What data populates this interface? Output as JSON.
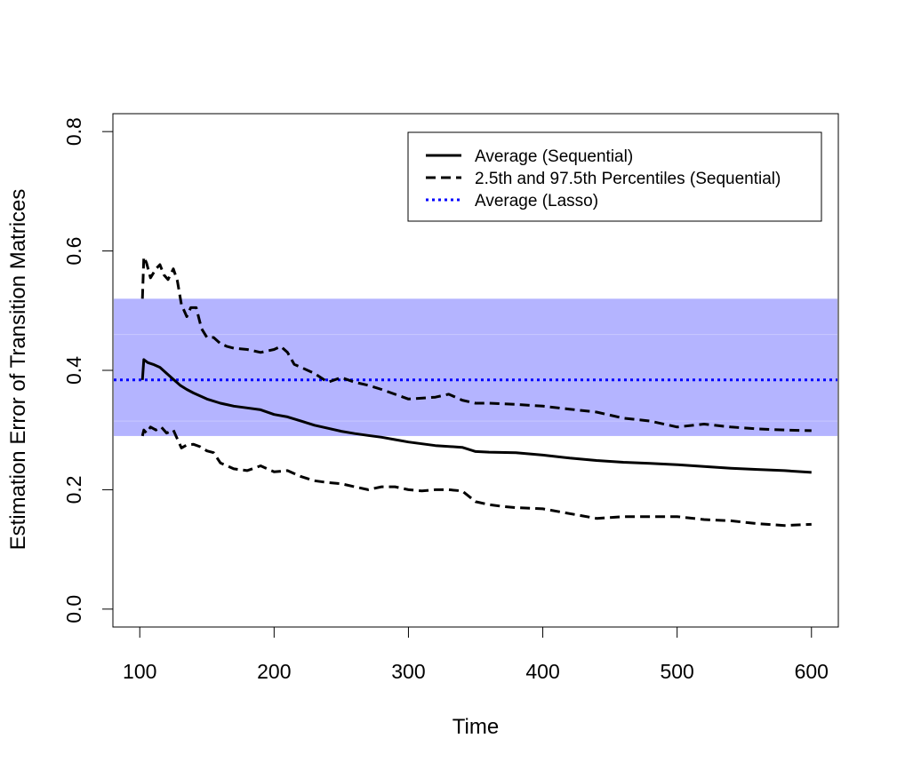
{
  "chart_data": {
    "type": "line",
    "title": "",
    "xlabel": "Time",
    "ylabel": "Estimation Error of Transition Matrices",
    "xlim": [
      80,
      620
    ],
    "ylim": [
      -0.03,
      0.83
    ],
    "x_ticks": [
      100,
      200,
      300,
      400,
      500,
      600
    ],
    "x_tick_labels": [
      "100",
      "200",
      "300",
      "400",
      "500",
      "600"
    ],
    "y_ticks": [
      0.0,
      0.2,
      0.4,
      0.6,
      0.8
    ],
    "y_tick_labels": [
      "0.0",
      "0.2",
      "0.4",
      "0.6",
      "0.8"
    ],
    "legend": {
      "position": "top-right",
      "entries": [
        {
          "label": "Average (Sequential)",
          "style": "solid",
          "color": "#000000"
        },
        {
          "label": "2.5th and 97.5th Percentiles (Sequential)",
          "style": "dashed",
          "color": "#000000"
        },
        {
          "label": "Average (Lasso)",
          "style": "dotted",
          "color": "#0000ff"
        }
      ]
    },
    "lasso_band": {
      "lower": 0.29,
      "upper": 0.52,
      "inner_lower": 0.315,
      "inner_upper": 0.46,
      "color": "#b4b4ff"
    },
    "lasso_average": 0.384,
    "series": [
      {
        "name": "Average (Sequential)",
        "style": "solid",
        "x": [
          102,
          103,
          106,
          110,
          115,
          120,
          125,
          130,
          135,
          140,
          150,
          160,
          170,
          180,
          190,
          200,
          210,
          220,
          230,
          240,
          250,
          260,
          270,
          280,
          290,
          300,
          320,
          340,
          350,
          360,
          380,
          400,
          420,
          440,
          460,
          480,
          500,
          520,
          540,
          560,
          580,
          600
        ],
        "y": [
          0.384,
          0.418,
          0.413,
          0.41,
          0.405,
          0.395,
          0.385,
          0.375,
          0.368,
          0.362,
          0.352,
          0.345,
          0.34,
          0.337,
          0.334,
          0.326,
          0.322,
          0.315,
          0.308,
          0.303,
          0.298,
          0.294,
          0.291,
          0.288,
          0.284,
          0.28,
          0.274,
          0.271,
          0.264,
          0.263,
          0.262,
          0.258,
          0.253,
          0.249,
          0.246,
          0.244,
          0.242,
          0.239,
          0.236,
          0.234,
          0.232,
          0.229
        ]
      },
      {
        "name": "97.5th Percentile (Sequential)",
        "style": "dashed",
        "x": [
          102,
          103,
          105,
          108,
          112,
          115,
          118,
          121,
          125,
          128,
          131,
          135,
          138,
          142,
          146,
          150,
          155,
          160,
          165,
          170,
          180,
          190,
          200,
          205,
          210,
          215,
          220,
          230,
          240,
          250,
          260,
          270,
          280,
          290,
          300,
          320,
          330,
          340,
          350,
          360,
          380,
          400,
          420,
          440,
          460,
          480,
          500,
          520,
          540,
          560,
          580,
          600
        ],
        "y": [
          0.52,
          0.59,
          0.58,
          0.555,
          0.57,
          0.577,
          0.56,
          0.552,
          0.57,
          0.55,
          0.51,
          0.49,
          0.505,
          0.505,
          0.47,
          0.455,
          0.455,
          0.445,
          0.44,
          0.437,
          0.435,
          0.43,
          0.435,
          0.44,
          0.43,
          0.41,
          0.405,
          0.395,
          0.38,
          0.388,
          0.38,
          0.375,
          0.368,
          0.36,
          0.352,
          0.355,
          0.36,
          0.35,
          0.345,
          0.345,
          0.343,
          0.34,
          0.335,
          0.33,
          0.32,
          0.315,
          0.305,
          0.31,
          0.305,
          0.302,
          0.3,
          0.299
        ]
      },
      {
        "name": "2.5th Percentile (Sequential)",
        "style": "dashed",
        "x": [
          102,
          103,
          105,
          108,
          112,
          116,
          120,
          125,
          128,
          131,
          135,
          140,
          145,
          150,
          155,
          160,
          165,
          170,
          180,
          190,
          200,
          210,
          220,
          230,
          240,
          250,
          260,
          270,
          280,
          290,
          300,
          310,
          320,
          330,
          340,
          350,
          360,
          370,
          380,
          400,
          420,
          440,
          460,
          480,
          500,
          520,
          540,
          560,
          580,
          600
        ],
        "y": [
          0.29,
          0.3,
          0.295,
          0.305,
          0.3,
          0.305,
          0.295,
          0.3,
          0.285,
          0.27,
          0.275,
          0.276,
          0.272,
          0.265,
          0.262,
          0.245,
          0.24,
          0.235,
          0.232,
          0.24,
          0.23,
          0.232,
          0.222,
          0.215,
          0.212,
          0.21,
          0.205,
          0.2,
          0.205,
          0.205,
          0.2,
          0.198,
          0.2,
          0.2,
          0.198,
          0.18,
          0.175,
          0.172,
          0.17,
          0.168,
          0.16,
          0.152,
          0.155,
          0.155,
          0.155,
          0.15,
          0.148,
          0.143,
          0.14,
          0.142
        ]
      }
    ]
  }
}
